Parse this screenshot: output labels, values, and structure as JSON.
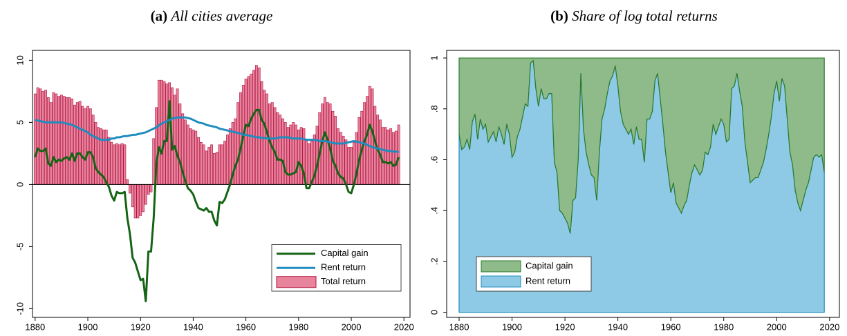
{
  "chart_data": [
    {
      "type": "combo",
      "panel": "(a)",
      "title": "All cities average",
      "x": [
        1880,
        1881,
        1882,
        1883,
        1884,
        1885,
        1886,
        1887,
        1888,
        1889,
        1890,
        1891,
        1892,
        1893,
        1894,
        1895,
        1896,
        1897,
        1898,
        1899,
        1900,
        1901,
        1902,
        1903,
        1904,
        1905,
        1906,
        1907,
        1908,
        1909,
        1910,
        1911,
        1912,
        1913,
        1914,
        1915,
        1916,
        1917,
        1918,
        1919,
        1920,
        1921,
        1922,
        1923,
        1924,
        1925,
        1926,
        1927,
        1928,
        1929,
        1930,
        1931,
        1932,
        1933,
        1934,
        1935,
        1936,
        1937,
        1938,
        1939,
        1940,
        1941,
        1942,
        1943,
        1944,
        1945,
        1946,
        1947,
        1948,
        1949,
        1950,
        1951,
        1952,
        1953,
        1954,
        1955,
        1956,
        1957,
        1958,
        1959,
        1960,
        1961,
        1962,
        1963,
        1964,
        1965,
        1966,
        1967,
        1968,
        1969,
        1970,
        1971,
        1972,
        1973,
        1974,
        1975,
        1976,
        1977,
        1978,
        1979,
        1980,
        1981,
        1982,
        1983,
        1984,
        1985,
        1986,
        1987,
        1988,
        1989,
        1990,
        1991,
        1992,
        1993,
        1994,
        1995,
        1996,
        1997,
        1998,
        1999,
        2000,
        2001,
        2002,
        2003,
        2004,
        2005,
        2006,
        2007,
        2008,
        2009,
        2010,
        2011,
        2012,
        2013,
        2014,
        2015,
        2016,
        2017,
        2018
      ],
      "series": [
        {
          "name": "Capital gain",
          "kind": "line",
          "color": "#146414",
          "values": [
            2.2,
            2.9,
            2.7,
            2.7,
            2.9,
            1.7,
            1.5,
            2.2,
            1.8,
            2.0,
            1.9,
            2.1,
            2.2,
            2.0,
            2.5,
            1.9,
            2.5,
            2.5,
            2.2,
            2.0,
            2.6,
            2.6,
            2.2,
            1.3,
            1.0,
            0.8,
            0.6,
            0.2,
            -0.2,
            -0.9,
            -1.3,
            -0.6,
            -0.7,
            -0.7,
            -0.6,
            -2.7,
            -4.0,
            -5.9,
            -6.3,
            -7.0,
            -7.7,
            -7.6,
            -9.4,
            -5.4,
            -5.4,
            -2.7,
            1.7,
            3.0,
            2.5,
            3.5,
            3.5,
            6.7,
            2.8,
            3.1,
            2.3,
            1.8,
            1.0,
            0.3,
            -0.3,
            -0.5,
            -0.8,
            -1.4,
            -1.9,
            -2.0,
            -2.1,
            -1.9,
            -2.2,
            -2.2,
            -2.9,
            -3.3,
            -1.4,
            -1.5,
            -1.2,
            -0.6,
            0.0,
            0.8,
            1.5,
            2.0,
            2.9,
            3.9,
            4.8,
            4.7,
            5.3,
            5.7,
            6.0,
            6.0,
            5.2,
            4.9,
            4.2,
            3.5,
            3.0,
            2.6,
            2.0,
            2.0,
            1.9,
            1.0,
            0.8,
            0.8,
            0.9,
            1.0,
            1.8,
            1.5,
            0.9,
            -0.3,
            -0.3,
            0.2,
            0.7,
            1.5,
            2.5,
            3.5,
            4.2,
            3.6,
            2.9,
            1.9,
            1.5,
            0.9,
            0.6,
            0.5,
            0.0,
            -0.6,
            -0.7,
            0.0,
            0.9,
            2.0,
            2.8,
            3.5,
            4.0,
            4.8,
            4.3,
            3.5,
            2.8,
            2.4,
            1.8,
            1.8,
            1.7,
            1.8,
            1.5,
            1.6,
            2.2
          ]
        },
        {
          "name": "Rent return",
          "kind": "line",
          "color": "#1e8cbe",
          "values": [
            5.2,
            5.15,
            5.1,
            5.05,
            5.0,
            5.0,
            5.0,
            5.0,
            5.0,
            5.0,
            5.0,
            4.95,
            4.9,
            4.85,
            4.8,
            4.7,
            4.6,
            4.5,
            4.4,
            4.3,
            4.2,
            4.0,
            3.9,
            3.8,
            3.7,
            3.6,
            3.6,
            3.6,
            3.6,
            3.7,
            3.7,
            3.8,
            3.8,
            3.85,
            3.9,
            3.9,
            3.95,
            4.0,
            4.0,
            4.05,
            4.1,
            4.15,
            4.2,
            4.3,
            4.4,
            4.5,
            4.6,
            4.75,
            4.9,
            5.0,
            5.1,
            5.2,
            5.3,
            5.35,
            5.4,
            5.4,
            5.4,
            5.4,
            5.35,
            5.3,
            5.2,
            5.1,
            5.0,
            4.95,
            4.9,
            4.8,
            4.75,
            4.7,
            4.65,
            4.6,
            4.5,
            4.45,
            4.4,
            4.35,
            4.3,
            4.25,
            4.2,
            4.15,
            4.1,
            4.0,
            4.0,
            3.95,
            3.9,
            3.85,
            3.8,
            3.8,
            3.75,
            3.75,
            3.7,
            3.7,
            3.7,
            3.7,
            3.75,
            3.8,
            3.8,
            3.8,
            3.8,
            3.75,
            3.7,
            3.7,
            3.7,
            3.7,
            3.65,
            3.6,
            3.6,
            3.6,
            3.6,
            3.55,
            3.5,
            3.5,
            3.5,
            3.45,
            3.4,
            3.35,
            3.3,
            3.3,
            3.3,
            3.3,
            3.35,
            3.4,
            3.45,
            3.5,
            3.45,
            3.4,
            3.35,
            3.3,
            3.2,
            3.1,
            3.0,
            2.95,
            2.9,
            2.85,
            2.8,
            2.75,
            2.7,
            2.7,
            2.65,
            2.65,
            2.6
          ]
        },
        {
          "name": "Total return",
          "kind": "bar",
          "color": "#e8849c",
          "edge": "#b01040",
          "values": [
            7.3,
            7.8,
            7.7,
            7.5,
            7.6,
            7.0,
            6.6,
            7.4,
            7.3,
            7.1,
            7.2,
            7.1,
            7.0,
            7.0,
            6.9,
            6.4,
            6.6,
            6.7,
            6.3,
            6.1,
            6.3,
            6.1,
            5.6,
            5.0,
            4.6,
            4.5,
            4.4,
            4.4,
            3.8,
            3.4,
            3.2,
            3.3,
            3.2,
            3.3,
            3.2,
            0.4,
            -0.7,
            -1.8,
            -2.7,
            -2.7,
            -2.5,
            -2.2,
            -1.6,
            -0.8,
            -0.6,
            3.7,
            6.2,
            8.4,
            8.4,
            8.3,
            8.1,
            8.2,
            7.8,
            7.2,
            7.7,
            6.5,
            5.7,
            5.2,
            4.8,
            4.5,
            4.4,
            4.3,
            3.8,
            3.4,
            3.2,
            2.7,
            3.0,
            3.2,
            2.5,
            2.6,
            3.2,
            3.2,
            3.5,
            4.0,
            4.5,
            5.0,
            5.3,
            6.6,
            7.4,
            8.0,
            8.5,
            8.7,
            8.9,
            9.2,
            9.6,
            9.4,
            8.3,
            7.6,
            7.3,
            6.5,
            6.6,
            6.2,
            5.8,
            5.6,
            5.3,
            5.0,
            4.6,
            4.8,
            5.0,
            4.8,
            4.4,
            4.6,
            4.5,
            3.6,
            3.3,
            3.5,
            4.0,
            4.7,
            5.8,
            6.5,
            7.0,
            6.6,
            6.5,
            5.9,
            5.5,
            4.5,
            4.2,
            3.9,
            3.6,
            3.0,
            3.0,
            3.4,
            4.2,
            5.4,
            5.9,
            6.6,
            7.1,
            7.9,
            7.7,
            6.3,
            5.6,
            5.2,
            4.6,
            4.6,
            4.4,
            4.5,
            4.2,
            4.3,
            4.8
          ]
        }
      ],
      "xlim": [
        1879,
        2022.3
      ],
      "xticks": [
        1880,
        1900,
        1920,
        1940,
        1960,
        1980,
        2000,
        2020
      ],
      "ylim": [
        -10.7,
        10.8
      ],
      "yticks": [
        -10,
        -5,
        0,
        5,
        10
      ],
      "legend_position": "lower right"
    },
    {
      "type": "area",
      "stacked": true,
      "panel": "(b)",
      "title": "Share of log total returns",
      "x": [
        1880,
        1881,
        1882,
        1883,
        1884,
        1885,
        1886,
        1887,
        1888,
        1889,
        1890,
        1891,
        1892,
        1893,
        1894,
        1895,
        1896,
        1897,
        1898,
        1899,
        1900,
        1901,
        1902,
        1903,
        1904,
        1905,
        1906,
        1907,
        1908,
        1909,
        1910,
        1911,
        1912,
        1913,
        1914,
        1915,
        1916,
        1917,
        1918,
        1919,
        1920,
        1921,
        1922,
        1923,
        1924,
        1925,
        1926,
        1927,
        1928,
        1929,
        1930,
        1931,
        1932,
        1933,
        1934,
        1935,
        1936,
        1937,
        1938,
        1939,
        1940,
        1941,
        1942,
        1943,
        1944,
        1945,
        1946,
        1947,
        1948,
        1949,
        1950,
        1951,
        1952,
        1953,
        1954,
        1955,
        1956,
        1957,
        1958,
        1959,
        1960,
        1961,
        1962,
        1963,
        1964,
        1965,
        1966,
        1967,
        1968,
        1969,
        1970,
        1971,
        1972,
        1973,
        1974,
        1975,
        1976,
        1977,
        1978,
        1979,
        1980,
        1981,
        1982,
        1983,
        1984,
        1985,
        1986,
        1987,
        1988,
        1989,
        1990,
        1991,
        1992,
        1993,
        1994,
        1995,
        1996,
        1997,
        1998,
        1999,
        2000,
        2001,
        2002,
        2003,
        2004,
        2005,
        2006,
        2007,
        2008,
        2009,
        2010,
        2011,
        2012,
        2013,
        2014,
        2015,
        2016,
        2017,
        2018
      ],
      "series": [
        {
          "name": "Capital gain",
          "color": "#8fba8a",
          "edge": "#2a7a2a",
          "values": [
            0.3,
            0.36,
            0.35,
            0.32,
            0.36,
            0.25,
            0.22,
            0.32,
            0.24,
            0.28,
            0.26,
            0.33,
            0.31,
            0.29,
            0.33,
            0.27,
            0.3,
            0.34,
            0.26,
            0.3,
            0.39,
            0.37,
            0.31,
            0.28,
            0.23,
            0.18,
            0.19,
            0.02,
            0.01,
            0.12,
            0.19,
            0.12,
            0.16,
            0.16,
            0.14,
            0.14,
            0.41,
            0.45,
            0.6,
            0.61,
            0.63,
            0.65,
            0.69,
            0.56,
            0.55,
            0.4,
            0.06,
            0.28,
            0.37,
            0.42,
            0.46,
            0.47,
            0.56,
            0.37,
            0.24,
            0.2,
            0.14,
            0.09,
            0.07,
            0.03,
            0.11,
            0.21,
            0.26,
            0.28,
            0.3,
            0.28,
            0.34,
            0.27,
            0.32,
            0.32,
            0.41,
            0.24,
            0.24,
            0.21,
            0.09,
            0.06,
            0.16,
            0.26,
            0.37,
            0.45,
            0.53,
            0.49,
            0.57,
            0.59,
            0.61,
            0.58,
            0.56,
            0.5,
            0.45,
            0.42,
            0.44,
            0.46,
            0.44,
            0.37,
            0.38,
            0.35,
            0.26,
            0.3,
            0.27,
            0.24,
            0.26,
            0.33,
            0.32,
            0.12,
            0.11,
            0.06,
            0.13,
            0.19,
            0.33,
            0.41,
            0.49,
            0.48,
            0.47,
            0.47,
            0.44,
            0.41,
            0.36,
            0.3,
            0.23,
            0.14,
            0.09,
            0.17,
            0.08,
            0.11,
            0.24,
            0.37,
            0.42,
            0.52,
            0.57,
            0.6,
            0.56,
            0.52,
            0.49,
            0.44,
            0.39,
            0.38,
            0.39,
            0.38,
            0.45
          ]
        },
        {
          "name": "Rent return",
          "color": "#8ecae6",
          "edge": "#1e8cbe",
          "values": [
            0.7,
            0.64,
            0.65,
            0.68,
            0.64,
            0.75,
            0.78,
            0.68,
            0.76,
            0.72,
            0.74,
            0.67,
            0.69,
            0.71,
            0.67,
            0.73,
            0.7,
            0.66,
            0.74,
            0.7,
            0.61,
            0.63,
            0.69,
            0.72,
            0.77,
            0.82,
            0.81,
            0.98,
            0.99,
            0.88,
            0.81,
            0.88,
            0.84,
            0.84,
            0.86,
            0.86,
            0.59,
            0.55,
            0.4,
            0.39,
            0.37,
            0.35,
            0.31,
            0.44,
            0.45,
            0.6,
            0.94,
            0.72,
            0.63,
            0.58,
            0.54,
            0.53,
            0.44,
            0.63,
            0.76,
            0.8,
            0.86,
            0.91,
            0.93,
            0.97,
            0.89,
            0.79,
            0.74,
            0.72,
            0.7,
            0.72,
            0.66,
            0.73,
            0.68,
            0.68,
            0.59,
            0.76,
            0.76,
            0.79,
            0.91,
            0.94,
            0.84,
            0.74,
            0.63,
            0.55,
            0.47,
            0.51,
            0.43,
            0.41,
            0.39,
            0.42,
            0.44,
            0.5,
            0.55,
            0.58,
            0.56,
            0.54,
            0.56,
            0.63,
            0.62,
            0.65,
            0.74,
            0.7,
            0.73,
            0.76,
            0.74,
            0.67,
            0.68,
            0.88,
            0.89,
            0.94,
            0.87,
            0.81,
            0.67,
            0.59,
            0.51,
            0.52,
            0.53,
            0.53,
            0.56,
            0.59,
            0.64,
            0.7,
            0.77,
            0.86,
            0.91,
            0.83,
            0.92,
            0.89,
            0.76,
            0.63,
            0.58,
            0.48,
            0.43,
            0.4,
            0.44,
            0.48,
            0.51,
            0.56,
            0.61,
            0.62,
            0.61,
            0.62,
            0.55
          ]
        }
      ],
      "xlim": [
        1875.3,
        2023.7
      ],
      "xticks": [
        1880,
        1900,
        1920,
        1940,
        1960,
        1980,
        2000,
        2020
      ],
      "ylim": [
        -0.02,
        1.03
      ],
      "yticks": [
        0,
        {
          "value": 0.2,
          "label": ".2"
        },
        {
          "value": 0.4,
          "label": ".4"
        },
        {
          "value": 0.6,
          "label": ".6"
        },
        {
          "value": 0.8,
          "label": ".8"
        },
        1
      ],
      "legend_position": "lower left"
    }
  ]
}
